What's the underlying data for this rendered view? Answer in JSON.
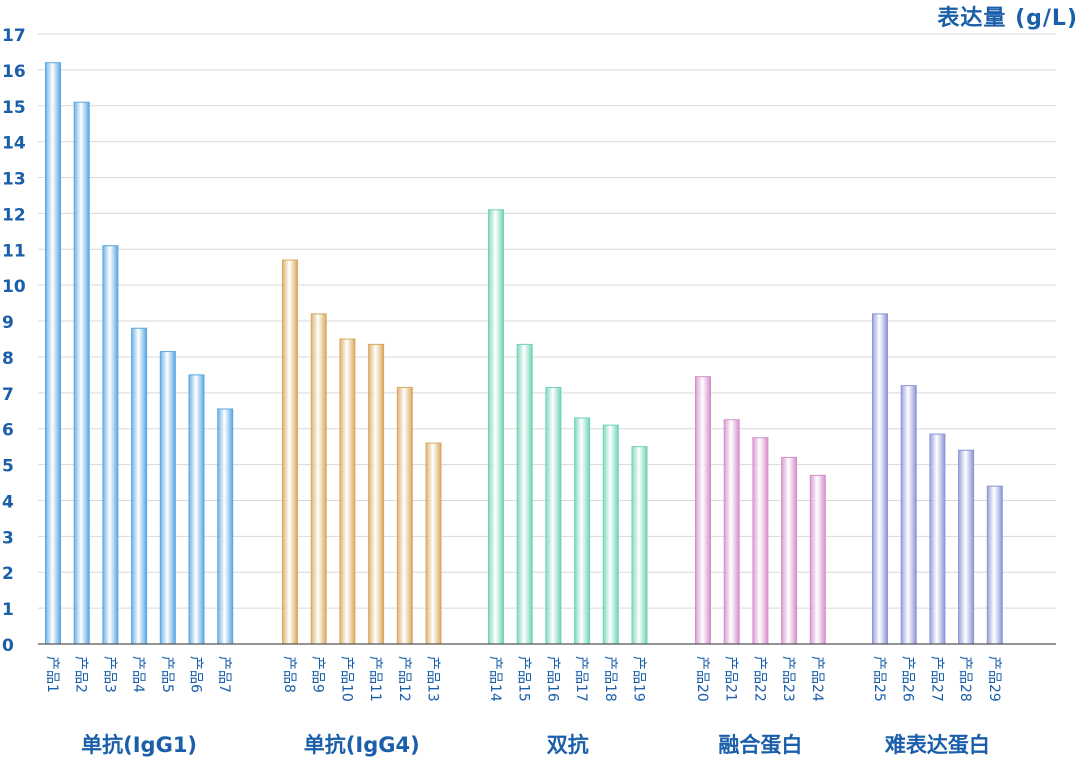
{
  "chart_data": {
    "type": "bar",
    "ylabel": "表达量 (g/L)",
    "ylim": [
      0,
      17
    ],
    "yticks": [
      0,
      1,
      2,
      3,
      4,
      5,
      6,
      7,
      8,
      9,
      10,
      11,
      12,
      13,
      14,
      15,
      16,
      17
    ],
    "grid": true,
    "groups": [
      {
        "name": "单抗(IgG1)",
        "color": "#5aa6e0",
        "categories": [
          "产品1",
          "产品2",
          "产品3",
          "产品4",
          "产品5",
          "产品6",
          "产品7"
        ],
        "values": [
          16.2,
          15.1,
          11.1,
          8.8,
          8.15,
          7.5,
          6.55
        ]
      },
      {
        "name": "单抗(IgG4)",
        "color": "#d9a85e",
        "categories": [
          "产品8",
          "产品9",
          "产品10",
          "产品11",
          "产品12",
          "产品13"
        ],
        "values": [
          10.7,
          9.2,
          8.5,
          8.35,
          7.15,
          5.6
        ]
      },
      {
        "name": "双抗",
        "color": "#6ed3b8",
        "categories": [
          "产品14",
          "产品15",
          "产品16",
          "产品17",
          "产品18",
          "产品19"
        ],
        "values": [
          12.1,
          8.35,
          7.15,
          6.3,
          6.1,
          5.5
        ]
      },
      {
        "name": "融合蛋白",
        "color": "#d48fcc",
        "categories": [
          "产品20",
          "产品21",
          "产品22",
          "产品23",
          "产品24"
        ],
        "values": [
          7.45,
          6.25,
          5.75,
          5.2,
          4.7
        ]
      },
      {
        "name": "难表达蛋白",
        "color": "#8a94d6",
        "categories": [
          "产品25",
          "产品26",
          "产品27",
          "产品28",
          "产品29"
        ],
        "values": [
          9.2,
          7.2,
          5.85,
          5.4,
          4.4
        ]
      }
    ]
  }
}
